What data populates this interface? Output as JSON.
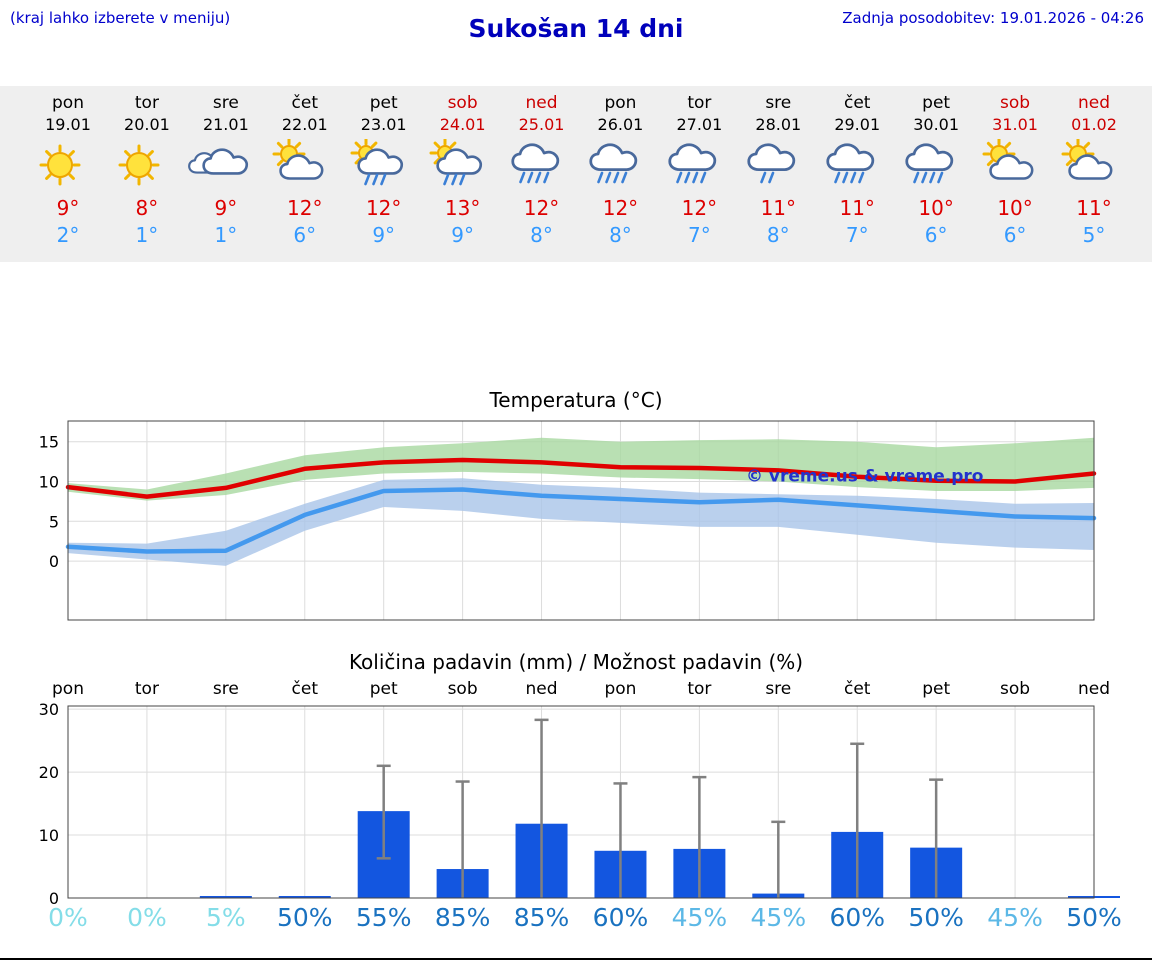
{
  "header": {
    "hint": "(kraj lahko izberete v meniju)",
    "title": "Sukošan 14 dni",
    "updated": "Zadnja posodobitev: 19.01.2026 - 04:26"
  },
  "colors": {
    "link_blue": "#0000cc",
    "weekend_red": "#cc0000",
    "high_temp_red": "#dd0000",
    "low_temp_blue": "#3399ff",
    "strip_bg": "#efefef",
    "bar_blue": "#1356e0",
    "temp_max_line": "#e00000",
    "temp_min_line": "#4499ee",
    "temp_max_band": "#a8d8a0",
    "temp_min_band": "#a9c4e8",
    "prob_low": "#84dde8",
    "prob_mid": "#5cb8e6",
    "prob_high": "#1a72c0"
  },
  "forecast": {
    "days": [
      {
        "day": "pon",
        "date": "19.01",
        "weekend": false,
        "icon": "sunny",
        "high": "9°",
        "low": "2°"
      },
      {
        "day": "tor",
        "date": "20.01",
        "weekend": false,
        "icon": "sunny",
        "high": "8°",
        "low": "1°"
      },
      {
        "day": "sre",
        "date": "21.01",
        "weekend": false,
        "icon": "cloudy",
        "high": "9°",
        "low": "1°"
      },
      {
        "day": "čet",
        "date": "22.01",
        "weekend": false,
        "icon": "partly",
        "high": "12°",
        "low": "6°"
      },
      {
        "day": "pet",
        "date": "23.01",
        "weekend": false,
        "icon": "rain_sun",
        "high": "12°",
        "low": "9°"
      },
      {
        "day": "sob",
        "date": "24.01",
        "weekend": true,
        "icon": "rain_sun",
        "high": "13°",
        "low": "9°"
      },
      {
        "day": "ned",
        "date": "25.01",
        "weekend": true,
        "icon": "rain",
        "high": "12°",
        "low": "8°"
      },
      {
        "day": "pon",
        "date": "26.01",
        "weekend": false,
        "icon": "rain",
        "high": "12°",
        "low": "8°"
      },
      {
        "day": "tor",
        "date": "27.01",
        "weekend": false,
        "icon": "rain",
        "high": "12°",
        "low": "7°"
      },
      {
        "day": "sre",
        "date": "28.01",
        "weekend": false,
        "icon": "light_rain",
        "high": "11°",
        "low": "8°"
      },
      {
        "day": "čet",
        "date": "29.01",
        "weekend": false,
        "icon": "rain",
        "high": "11°",
        "low": "7°"
      },
      {
        "day": "pet",
        "date": "30.01",
        "weekend": false,
        "icon": "rain",
        "high": "10°",
        "low": "6°"
      },
      {
        "day": "sob",
        "date": "31.01",
        "weekend": true,
        "icon": "partly",
        "high": "10°",
        "low": "6°"
      },
      {
        "day": "ned",
        "date": "01.02",
        "weekend": true,
        "icon": "partly",
        "high": "11°",
        "low": "5°"
      }
    ]
  },
  "chart_data": [
    {
      "type": "line",
      "title": "Temperatura (°C)",
      "categories": [
        "pon",
        "tor",
        "sre",
        "čet",
        "pet",
        "sob",
        "ned",
        "pon",
        "tor",
        "sre",
        "čet",
        "pet",
        "sob",
        "ned"
      ],
      "xlabel": "",
      "ylabel": "°C",
      "ylim": [
        -7.4,
        17.6
      ],
      "yticks": [
        0,
        5,
        10,
        15
      ],
      "grid": true,
      "watermark": "© vreme.us & vreme.pro",
      "series": [
        {
          "name": "temp-max-line",
          "color": "#e00000",
          "values": [
            9.3,
            8.1,
            9.2,
            11.6,
            12.4,
            12.7,
            12.4,
            11.8,
            11.7,
            11.4,
            10.6,
            10.1,
            10.0,
            11.0
          ]
        },
        {
          "name": "temp-min-line",
          "color": "#4499ee",
          "values": [
            1.8,
            1.2,
            1.3,
            5.8,
            8.8,
            9.0,
            8.2,
            7.8,
            7.4,
            7.7,
            7.0,
            6.3,
            5.6,
            5.4
          ]
        }
      ],
      "bands": [
        {
          "name": "temp-max-band",
          "color": "#a8d8a0",
          "upper": [
            9.8,
            9.0,
            11.0,
            13.3,
            14.3,
            14.8,
            15.5,
            15.0,
            15.2,
            15.3,
            15.0,
            14.3,
            14.8,
            15.5
          ],
          "lower": [
            8.7,
            7.6,
            8.3,
            10.2,
            11.0,
            11.2,
            11.0,
            10.5,
            10.3,
            10.0,
            9.3,
            8.8,
            8.8,
            9.2
          ]
        },
        {
          "name": "temp-min-band",
          "color": "#a9c4e8",
          "upper": [
            2.3,
            2.2,
            3.8,
            7.2,
            10.2,
            10.4,
            9.6,
            9.2,
            8.6,
            8.4,
            8.2,
            7.8,
            7.2,
            7.3
          ],
          "lower": [
            1.0,
            0.2,
            -0.6,
            3.8,
            6.8,
            6.3,
            5.3,
            4.8,
            4.3,
            4.3,
            3.3,
            2.3,
            1.7,
            1.4
          ]
        }
      ]
    },
    {
      "type": "bar",
      "title": "Količina padavin (mm) / Možnost padavin (%)",
      "categories": [
        "pon",
        "tor",
        "sre",
        "čet",
        "pet",
        "sob",
        "ned",
        "pon",
        "tor",
        "sre",
        "čet",
        "pet",
        "sob",
        "ned"
      ],
      "xlabel": "",
      "ylabel": "mm",
      "ylim": [
        0,
        30.5
      ],
      "yticks": [
        0,
        10,
        20,
        30
      ],
      "grid": true,
      "bar_color": "#1356e0",
      "values": [
        0,
        0,
        0.1,
        0.2,
        13.8,
        4.6,
        11.8,
        7.5,
        7.8,
        0.7,
        10.5,
        8.0,
        0,
        0.1
      ],
      "whisker_low": [
        null,
        null,
        null,
        null,
        6.3,
        0,
        0,
        0,
        0,
        0,
        0,
        0,
        null,
        null
      ],
      "whisker_high": [
        null,
        null,
        null,
        null,
        21.0,
        18.5,
        28.3,
        18.2,
        19.2,
        12.1,
        24.5,
        18.8,
        null,
        null
      ],
      "probabilities": [
        0,
        0,
        5,
        50,
        55,
        85,
        85,
        60,
        45,
        45,
        60,
        50,
        45,
        50
      ]
    }
  ]
}
